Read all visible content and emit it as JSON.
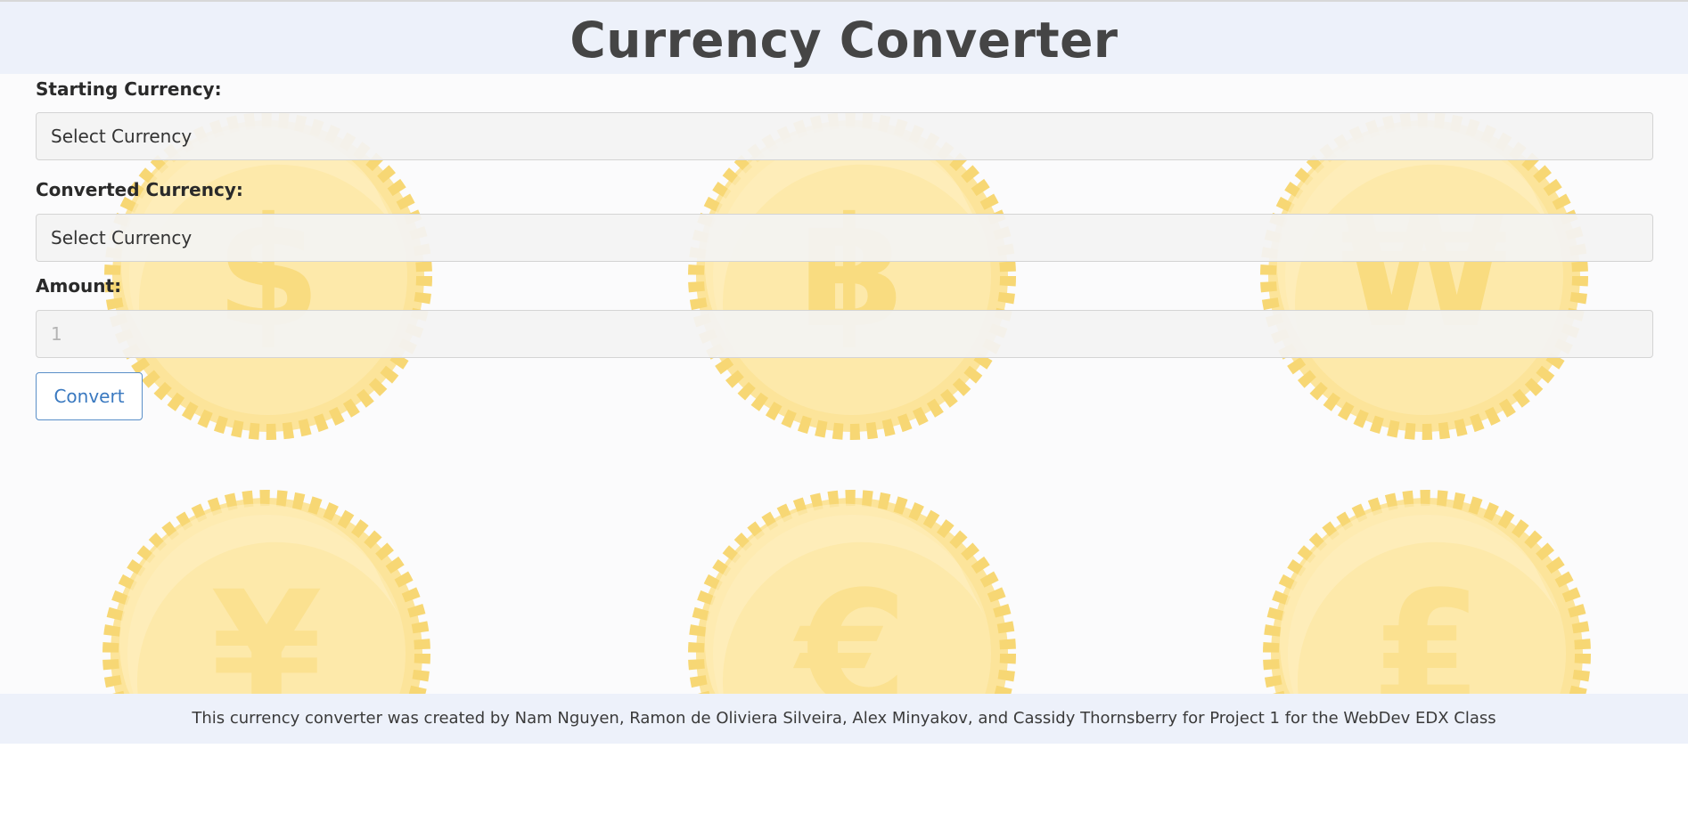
{
  "header": {
    "title": "Currency Converter"
  },
  "form": {
    "starting_currency": {
      "label": "Starting Currency:",
      "value": "Select Currency"
    },
    "converted_currency": {
      "label": "Converted Currency:",
      "value": "Select Currency"
    },
    "amount": {
      "label": "Amount:",
      "placeholder": "1"
    },
    "convert_button": {
      "label": "Convert"
    }
  },
  "background": {
    "coin_symbols": [
      "$",
      "฿",
      "₩",
      "¥",
      "€",
      "₤"
    ],
    "coin_color": "#fde9a6"
  },
  "footer": {
    "text": "This currency converter was created by Nam Nguyen, Ramon de Oliviera Silveira, Alex Minyakov, and Cassidy Thornsberry for Project 1 for the WebDev EDX Class"
  },
  "colors": {
    "header_bg": "#edf1fa",
    "accent": "#3a79c0"
  }
}
